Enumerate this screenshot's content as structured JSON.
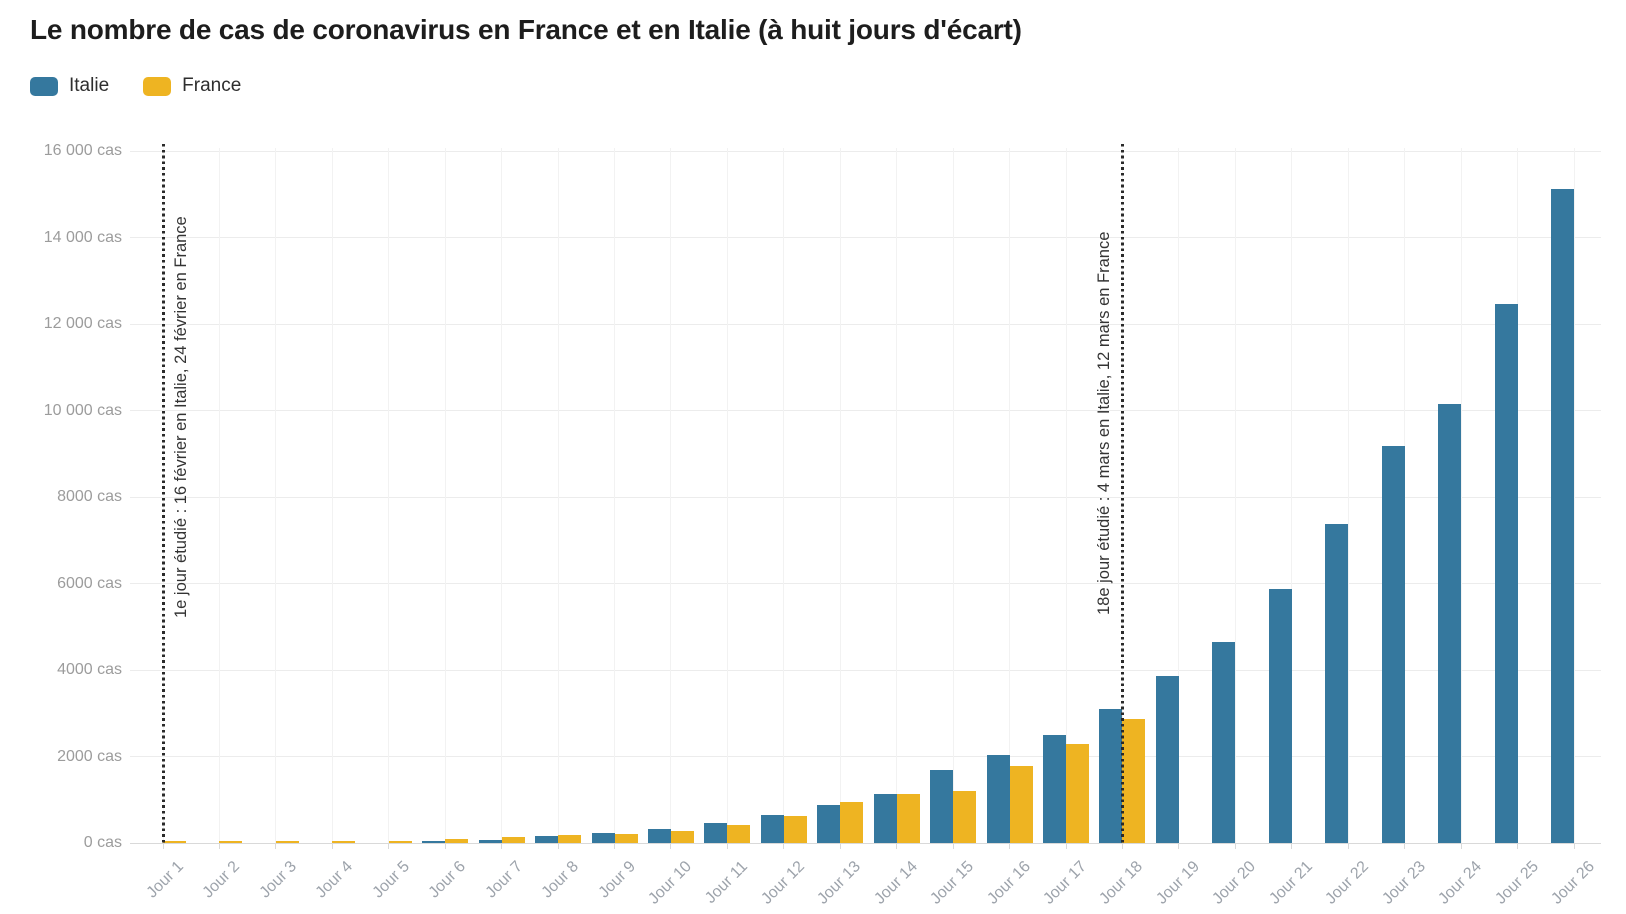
{
  "header": {
    "title": "Le nombre de cas de coronavirus en France et en Italie (à huit jours d'écart)"
  },
  "legend": {
    "items": [
      {
        "label": "Italie",
        "color": "#35789e"
      },
      {
        "label": "France",
        "color": "#eeb422"
      }
    ]
  },
  "chart_data": {
    "type": "bar",
    "title": "Le nombre de cas de coronavirus en France et en Italie (à huit jours d'écart)",
    "unit": "cas",
    "categories": [
      "Jour 1",
      "Jour 2",
      "Jour 3",
      "Jour 4",
      "Jour 5",
      "Jour 6",
      "Jour 7",
      "Jour 8",
      "Jour 9",
      "Jour 10",
      "Jour 11",
      "Jour 12",
      "Jour 13",
      "Jour 14",
      "Jour 15",
      "Jour 16",
      "Jour 17",
      "Jour 18",
      "Jour 19",
      "Jour 20",
      "Jour 21",
      "Jour 22",
      "Jour 23",
      "Jour 24",
      "Jour 25",
      "Jour 26"
    ],
    "series": [
      {
        "name": "Italie",
        "color": "#35789e",
        "values": [
          3,
          3,
          3,
          3,
          4,
          21,
          79,
          157,
          229,
          322,
          453,
          655,
          888,
          1128,
          1694,
          2036,
          2502,
          3089,
          3858,
          4636,
          5883,
          7375,
          9172,
          10149,
          12462,
          15113
        ]
      },
      {
        "name": "France",
        "color": "#eeb422",
        "values": [
          12,
          14,
          18,
          38,
          57,
          100,
          130,
          191,
          212,
          285,
          423,
          613,
          949,
          1126,
          1209,
          1784,
          2281,
          2876
        ]
      }
    ],
    "ylim": [
      0,
      16000
    ],
    "yticks": [
      {
        "value": 0,
        "label": "0 cas"
      },
      {
        "value": 2000,
        "label": "2000 cas"
      },
      {
        "value": 4000,
        "label": "4000 cas"
      },
      {
        "value": 6000,
        "label": "6000 cas"
      },
      {
        "value": 8000,
        "label": "8000 cas"
      },
      {
        "value": 10000,
        "label": "10 000 cas"
      },
      {
        "value": 12000,
        "label": "12 000 cas"
      },
      {
        "value": 14000,
        "label": "14 000 cas"
      },
      {
        "value": 16000,
        "label": "16 000 cas"
      }
    ],
    "grid": "horizontal",
    "legend_position": "top-left",
    "annotations": [
      {
        "category_index": 0,
        "text": "1e jour étudié : 16 février en Italie, 24 février en France",
        "text_side": "right"
      },
      {
        "category_index": 17,
        "text": "18e jour étudié : 4 mars en Italie, 12 mars en France",
        "text_side": "left"
      }
    ]
  },
  "colors": {
    "italie": "#35789e",
    "france": "#eeb422",
    "title_text": "#1d1d1d",
    "legend_text": "#2e2e2e",
    "axis_text": "#9c9c9c",
    "gridline": "#ececec",
    "annotation_line": "#2a2a2a",
    "annotation_text": "#333333",
    "background": "#ffffff"
  }
}
